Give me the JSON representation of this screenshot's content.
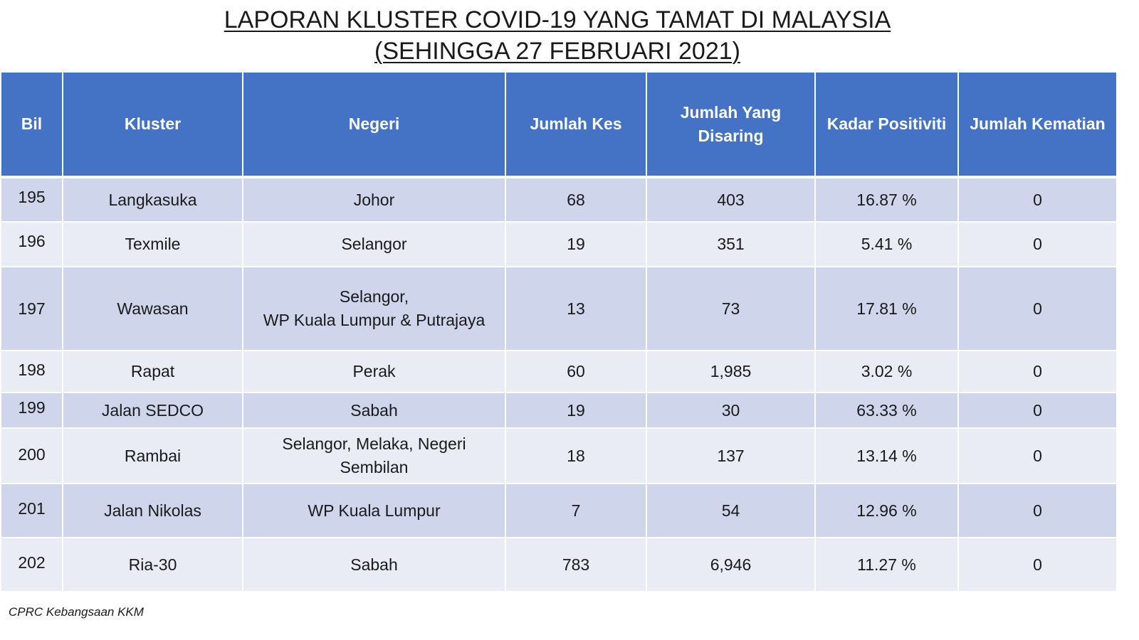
{
  "title": {
    "line1": "LAPORAN KLUSTER COVID-19 YANG TAMAT DI MALAYSIA",
    "line2": "(SEHINGGA  27 FEBRUARI 2021)"
  },
  "table": {
    "headers": [
      "Bil",
      "Kluster",
      "Negeri",
      "Jumlah Kes",
      "Jumlah Yang Disaring",
      "Kadar Positiviti",
      "Jumlah Kematian"
    ],
    "rows": [
      {
        "bil": "195",
        "kluster": "Langkasuka",
        "negeri": "Johor",
        "jumlah_kes": "68",
        "disaring": "403",
        "positiviti": "16.87 %",
        "kematian": "0"
      },
      {
        "bil": "196",
        "kluster": "Texmile",
        "negeri": "Selangor",
        "jumlah_kes": "19",
        "disaring": "351",
        "positiviti": "5.41 %",
        "kematian": "0"
      },
      {
        "bil": "197",
        "kluster": "Wawasan",
        "negeri": "Selangor,\nWP Kuala Lumpur & Putrajaya",
        "jumlah_kes": "13",
        "disaring": "73",
        "positiviti": "17.81 %",
        "kematian": "0"
      },
      {
        "bil": "198",
        "kluster": "Rapat",
        "negeri": "Perak",
        "jumlah_kes": "60",
        "disaring": "1,985",
        "positiviti": "3.02 %",
        "kematian": "0"
      },
      {
        "bil": "199",
        "kluster": "Jalan SEDCO",
        "negeri": "Sabah",
        "jumlah_kes": "19",
        "disaring": "30",
        "positiviti": "63.33 %",
        "kematian": "0"
      },
      {
        "bil": "200",
        "kluster": "Rambai",
        "negeri": "Selangor, Melaka, Negeri\nSembilan",
        "jumlah_kes": "18",
        "disaring": "137",
        "positiviti": "13.14 %",
        "kematian": "0"
      },
      {
        "bil": "201",
        "kluster": "Jalan Nikolas",
        "negeri": "WP Kuala Lumpur",
        "jumlah_kes": "7",
        "disaring": "54",
        "positiviti": "12.96 %",
        "kematian": "0"
      },
      {
        "bil": "202",
        "kluster": "Ria-30",
        "negeri": "Sabah",
        "jumlah_kes": "783",
        "disaring": "6,946",
        "positiviti": "11.27 %",
        "kematian": "0"
      }
    ]
  },
  "footer": {
    "source": "CPRC Kebangsaan KKM"
  },
  "colors": {
    "header_bg": "#4472c4",
    "row_dark": "#cfd5ea",
    "row_light": "#e9ebf5"
  }
}
